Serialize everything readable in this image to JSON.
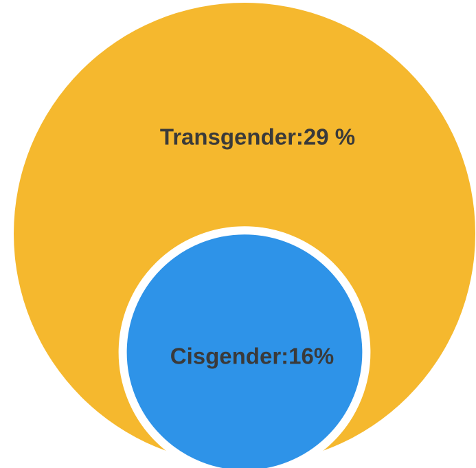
{
  "chart_data": {
    "type": "circles",
    "values": [
      29,
      16
    ],
    "value_labels": [
      "Transgender:29 %",
      "Cisgender:16%"
    ],
    "colors": [
      "#f5b82e",
      "#2e93e8"
    ]
  }
}
